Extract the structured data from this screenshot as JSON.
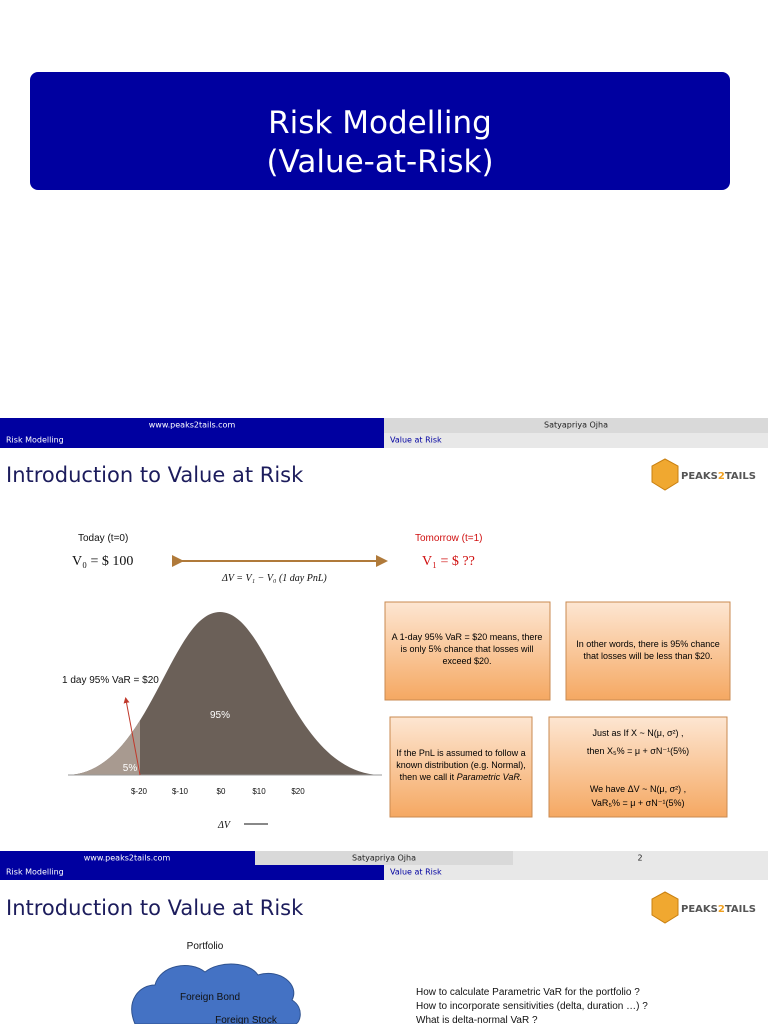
{
  "slide1": {
    "title_line1": "Risk Modelling",
    "title_line2": "(Value-at-Risk)"
  },
  "slide2": {
    "header": {
      "website": "www.peaks2tails.com",
      "author": "Satyapriya Ojha",
      "section": "Risk Modelling",
      "subsection": "Value at Risk"
    },
    "title": "Introduction to Value at Risk",
    "logo": [
      "PEAKS",
      "2",
      "TAILS"
    ],
    "today_label": "Today (t=0)",
    "v0": "V₀ = $ 100",
    "delta_v": "ΔV = V₁ − V₀ (1 day PnL)",
    "tomorrow_label": "Tomorrow (t=1)",
    "v1": "V₁ = $ ??",
    "var_label": "1 day 95% VaR = $20",
    "pct_95": "95%",
    "pct_5": "5%",
    "x_labels": [
      "$-20",
      "$-10",
      "$0",
      "$10",
      "$20"
    ],
    "x_axis_label": "ΔV",
    "box1": [
      "A 1-day 95% VaR = $20 means, there",
      "is only 5% chance that losses will",
      "exceed $20."
    ],
    "box2": [
      "In other words, there is 95% chance",
      "that losses will be less than $20."
    ],
    "box3": [
      "If the PnL is assumed to follow a",
      "known distribution (e.g. Normal),",
      "then we call it",
      "Parametric VaR."
    ],
    "box4": [
      "Just as If X ~ N(μ, σ²) ,",
      "then X₅% = μ + σN⁻¹(5%)",
      "We have ΔV ~ N(μ, σ²) ,",
      "VaR₅% = μ + σN⁻¹(5%)"
    ],
    "footer": {
      "website": "www.peaks2tails.com",
      "author": "Satyapriya Ojha",
      "page": "2"
    }
  },
  "slide3": {
    "header": {
      "section": "Risk Modelling",
      "subsection": "Value at Risk"
    },
    "title": "Introduction to Value at Risk",
    "logo": [
      "PEAKS",
      "2",
      "TAILS"
    ],
    "portfolio_label": "Portfolio",
    "cloud_items": [
      "Foreign Bond",
      "Foreign Stock"
    ],
    "questions": [
      "How to calculate Parametric VaR for the portfolio ?",
      "How to incorporate sensitivities (delta, duration …) ?",
      "What is delta-normal VaR ?"
    ]
  }
}
